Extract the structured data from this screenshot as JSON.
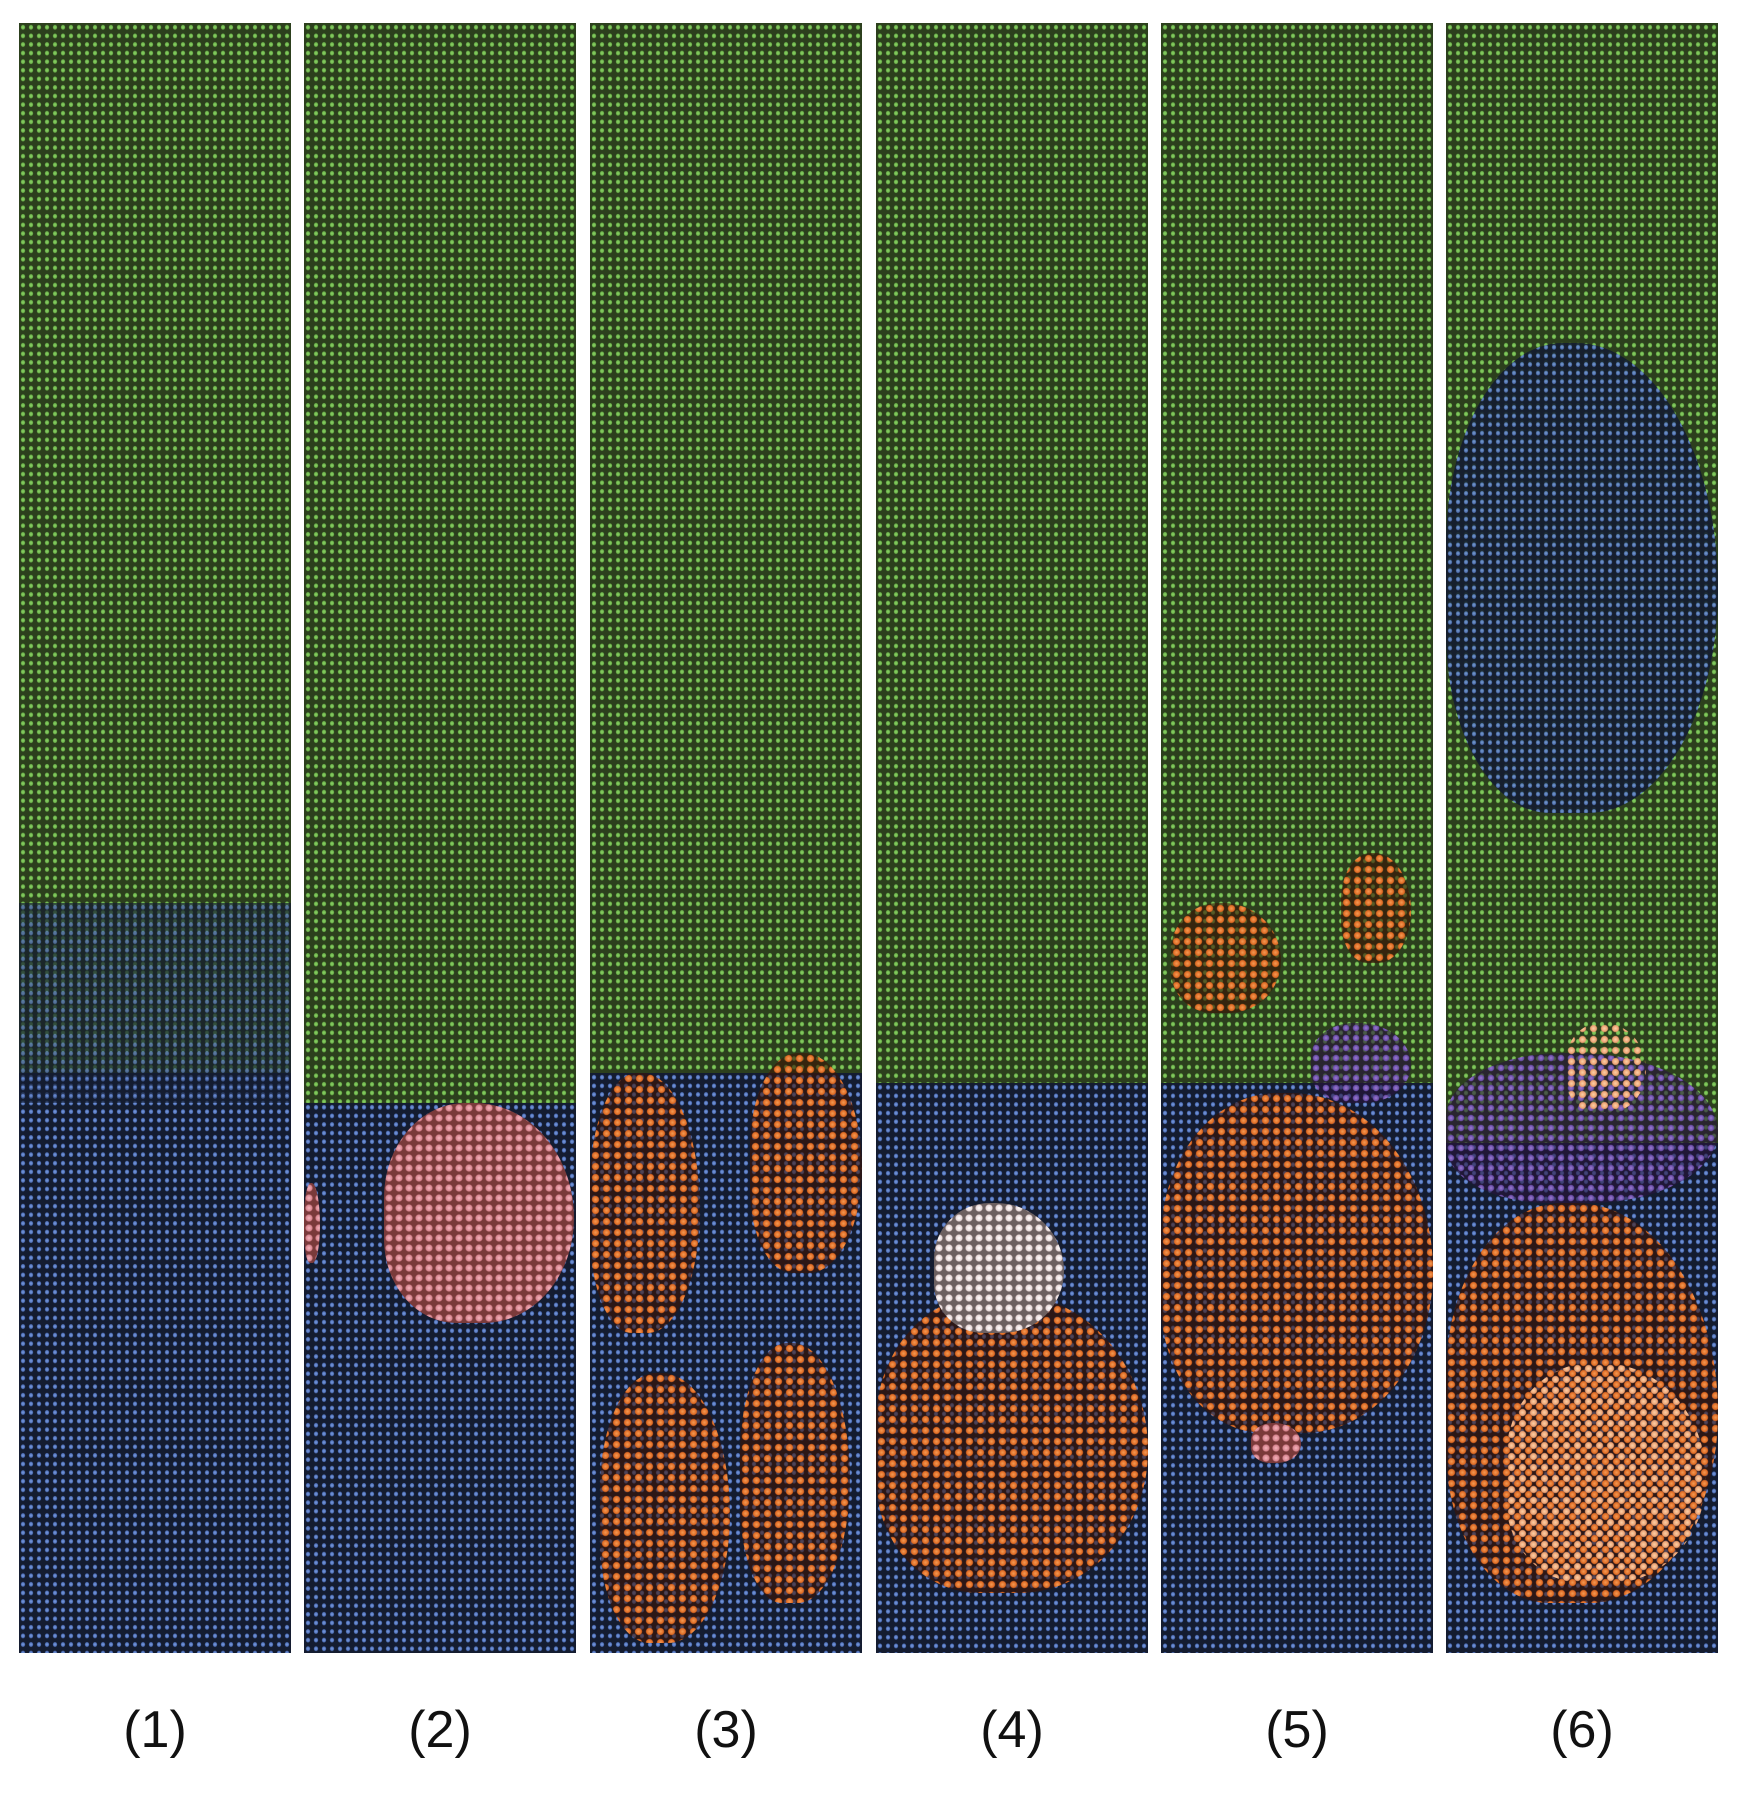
{
  "figure": {
    "panels": [
      {
        "label": "(1)"
      },
      {
        "label": "(2)"
      },
      {
        "label": "(3)"
      },
      {
        "label": "(4)"
      },
      {
        "label": "(5)"
      },
      {
        "label": "(6)"
      }
    ]
  }
}
